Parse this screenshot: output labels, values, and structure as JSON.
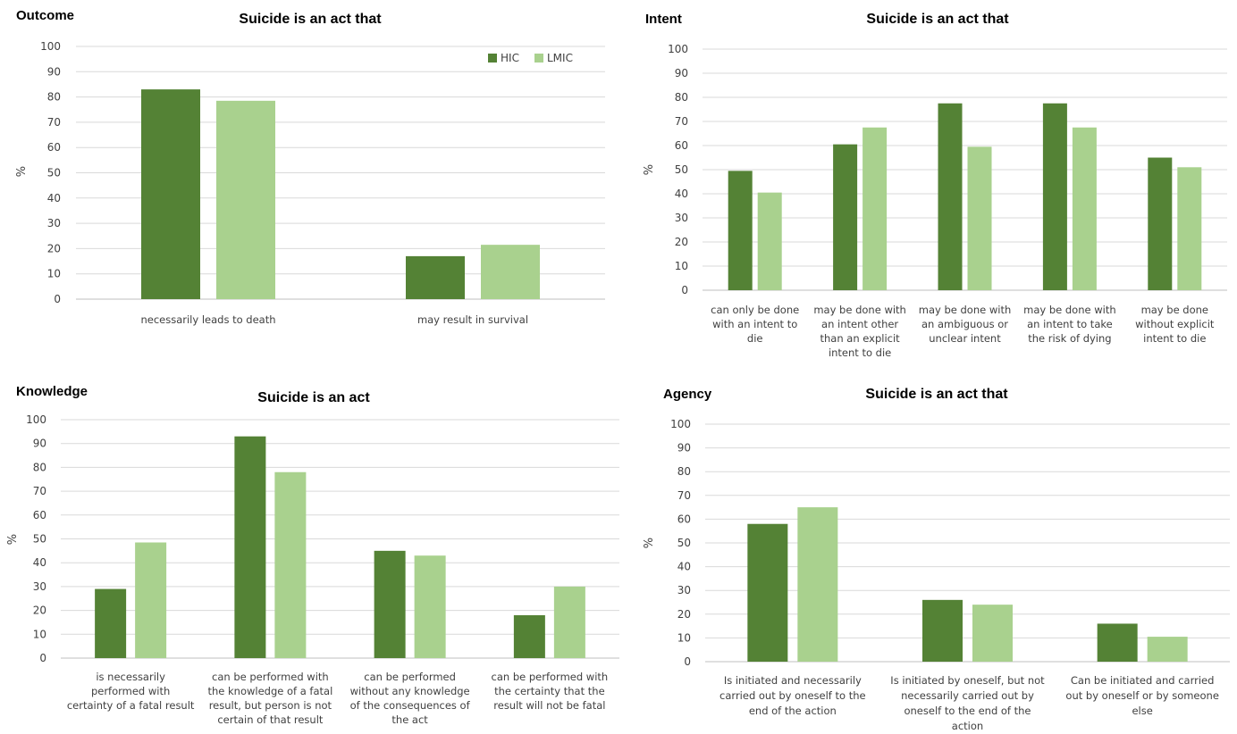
{
  "colors": {
    "HIC": "#548235",
    "LMIC": "#a9d18e"
  },
  "legend": {
    "hic": "HIC",
    "lmic": "LMIC"
  },
  "chart_data": [
    {
      "type": "bar",
      "panel_label": "Outcome",
      "title": "Suicide is an act that",
      "ylabel": "%",
      "ylim": [
        0,
        100
      ],
      "yticks": [
        0,
        10,
        20,
        30,
        40,
        50,
        60,
        70,
        80,
        90,
        100
      ],
      "grid": true,
      "legend_position": "top-right",
      "categories": [
        [
          "necessarily leads to death"
        ],
        [
          "may result in survival"
        ]
      ],
      "series": [
        {
          "name": "HIC",
          "values": [
            83,
            17
          ]
        },
        {
          "name": "LMIC",
          "values": [
            78.5,
            21.5
          ]
        }
      ]
    },
    {
      "type": "bar",
      "panel_label": "Intent",
      "title": "Suicide is an act that",
      "ylabel": "%",
      "ylim": [
        0,
        100
      ],
      "yticks": [
        0,
        10,
        20,
        30,
        40,
        50,
        60,
        70,
        80,
        90,
        100
      ],
      "grid": true,
      "categories": [
        [
          "can only be done",
          "with an intent to",
          "die"
        ],
        [
          "may be done with",
          "an intent other",
          "than an explicit",
          "intent to die"
        ],
        [
          "may be done with",
          "an ambiguous or",
          "unclear intent"
        ],
        [
          "may be done with",
          "an intent to take",
          "the risk of dying"
        ],
        [
          "may be done",
          "without explicit",
          "intent to die"
        ]
      ],
      "series": [
        {
          "name": "HIC",
          "values": [
            49.5,
            60.5,
            77.5,
            77.5,
            55
          ]
        },
        {
          "name": "LMIC",
          "values": [
            40.5,
            67.5,
            59.5,
            67.5,
            51
          ]
        }
      ]
    },
    {
      "type": "bar",
      "panel_label": "Knowledge",
      "title": "Suicide is an act",
      "ylabel": "%",
      "ylim": [
        0,
        100
      ],
      "yticks": [
        0,
        10,
        20,
        30,
        40,
        50,
        60,
        70,
        80,
        90,
        100
      ],
      "grid": true,
      "categories": [
        [
          "is necessarily",
          "performed with",
          "certainty of a fatal result"
        ],
        [
          "can be  performed with",
          "the knowledge of a fatal",
          "result, but person is not",
          "certain of that result"
        ],
        [
          "can be  performed",
          "without any knowledge",
          "of the consequences of",
          "the act"
        ],
        [
          "can be performed with",
          "the certainty that the",
          "result will not be fatal"
        ]
      ],
      "series": [
        {
          "name": "HIC",
          "values": [
            29,
            93,
            45,
            18
          ]
        },
        {
          "name": "LMIC",
          "values": [
            48.5,
            78,
            43,
            30
          ]
        }
      ]
    },
    {
      "type": "bar",
      "panel_label": "Agency",
      "title": "Suicide is an act that",
      "ylabel": "%",
      "ylim": [
        0,
        100
      ],
      "yticks": [
        0,
        10,
        20,
        30,
        40,
        50,
        60,
        70,
        80,
        90,
        100
      ],
      "grid": true,
      "categories": [
        [
          "Is initiated and necessarily",
          "carried out by oneself to the",
          "end of the action"
        ],
        [
          "Is initiated by oneself, but not",
          "necessarily carried out by",
          "oneself to the end of the",
          "action"
        ],
        [
          "Can be initiated and carried",
          "out by oneself or by someone",
          "else"
        ]
      ],
      "series": [
        {
          "name": "HIC",
          "values": [
            58,
            26,
            16
          ]
        },
        {
          "name": "LMIC",
          "values": [
            65,
            24,
            10.5
          ]
        }
      ]
    }
  ]
}
